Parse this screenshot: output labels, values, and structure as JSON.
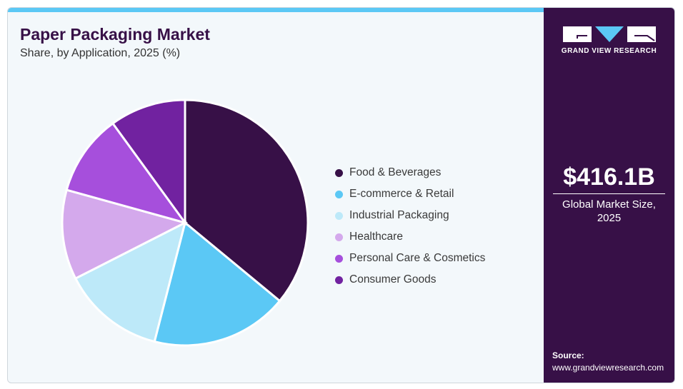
{
  "header": {
    "title": "Paper Packaging Market",
    "subtitle": "Share, by Application, 2025 (%)"
  },
  "brand": {
    "name": "GRAND VIEW RESEARCH",
    "accent": "#5bc8f5",
    "panel": "#371047"
  },
  "summary": {
    "value": "$416.1B",
    "caption_line1": "Global Market Size,",
    "caption_line2": "2025"
  },
  "source": {
    "label": "Source:",
    "url": "www.grandviewresearch.com"
  },
  "chart_data": {
    "type": "pie",
    "title": "Paper Packaging Market",
    "subtitle": "Share, by Application, 2025 (%)",
    "legend_position": "right",
    "categories": [
      "Food & Beverages",
      "E-commerce & Retail",
      "Industrial Packaging",
      "Healthcare",
      "Personal Care & Cosmetics",
      "Consumer Goods"
    ],
    "values": [
      36,
      18,
      13.5,
      11.8,
      10.7,
      10
    ],
    "colors": [
      "#371047",
      "#5bc8f5",
      "#bde9f9",
      "#d4a9ec",
      "#a64fdc",
      "#7122a0"
    ]
  }
}
